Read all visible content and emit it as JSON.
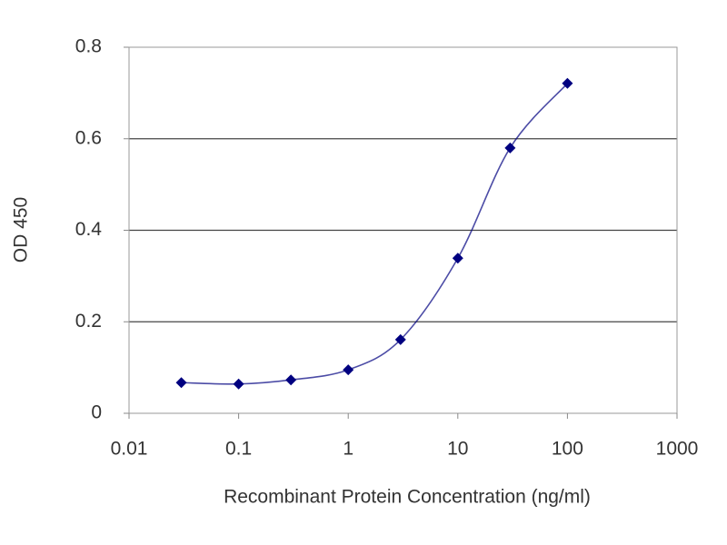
{
  "chart_data": {
    "type": "line",
    "xlabel": "Recombinant Protein Concentration (ng/ml)",
    "ylabel": "OD 450",
    "x": [
      0.03,
      0.1,
      0.3,
      1,
      3,
      10,
      30,
      100
    ],
    "series": [
      {
        "color": "#000080",
        "values": [
          0.067,
          0.064,
          0.073,
          0.095,
          0.161,
          0.339,
          0.58,
          0.721
        ]
      }
    ],
    "xscale": "log",
    "xlim": [
      0.01,
      1000
    ],
    "xticks": [
      0.01,
      0.1,
      1,
      10,
      100,
      1000
    ],
    "ylim": [
      0,
      0.8
    ],
    "yticks": [
      0,
      0.2,
      0.4,
      0.6,
      0.8
    ],
    "grid": true
  }
}
